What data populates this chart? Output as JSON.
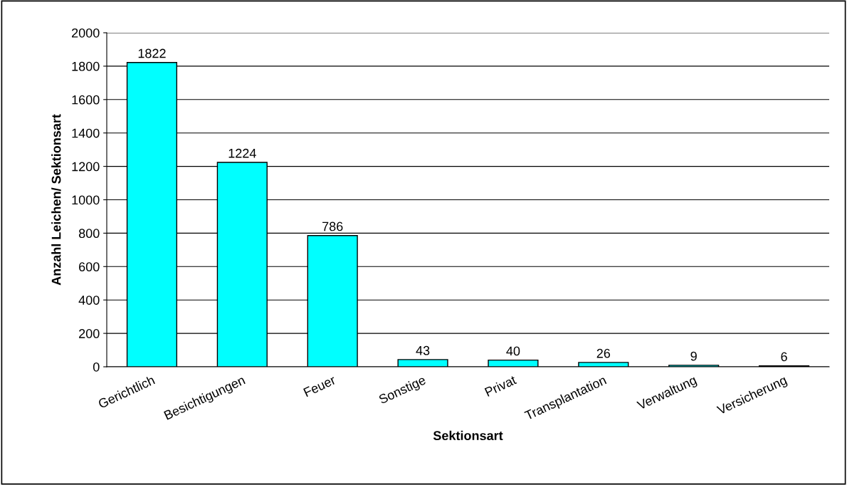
{
  "chart_data": {
    "type": "bar",
    "xlabel": "Sektionsart",
    "ylabel": "Anzahl Leichen/ Sektionsart",
    "categories": [
      "Gerichtlich",
      "Besichtigungen",
      "Feuer",
      "Sonstige",
      "Privat",
      "Transplantation",
      "Verwaltung",
      "Versicherung"
    ],
    "values": [
      1822,
      1224,
      786,
      43,
      40,
      26,
      9,
      6
    ],
    "color": "#00ffff",
    "ylim": [
      0,
      2000
    ],
    "yticks": [
      0,
      200,
      400,
      600,
      800,
      1000,
      1200,
      1400,
      1600,
      1800,
      2000
    ],
    "grid": "y",
    "data_labels": true,
    "legend": false
  }
}
